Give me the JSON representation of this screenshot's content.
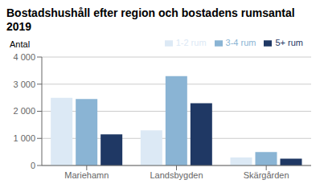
{
  "chart_data": {
    "type": "bar",
    "title": "Bostadshushåll efter region och bostadens rumsantal 2019",
    "ylabel": "Antal",
    "categories": [
      "Mariehamn",
      "Landsbygden",
      "Skärgården"
    ],
    "series": [
      {
        "name": "1-2 rum",
        "color": "#dce9f5",
        "values": [
          2500,
          1300,
          300
        ]
      },
      {
        "name": "3-4 rum",
        "color": "#8ab4d4",
        "values": [
          2450,
          3300,
          500
        ]
      },
      {
        "name": "5+ rum",
        "color": "#1f3864",
        "values": [
          1150,
          2300,
          250
        ]
      }
    ],
    "ylim": [
      0,
      4000
    ],
    "yticks": [
      0,
      {
        "value": 1000,
        "label": "1 000"
      },
      {
        "value": 2000,
        "label": "2 000"
      },
      {
        "value": 3000,
        "label": "3 000"
      },
      {
        "value": 4000,
        "label": "4 000"
      }
    ],
    "grid": true,
    "legend": "upper right"
  }
}
